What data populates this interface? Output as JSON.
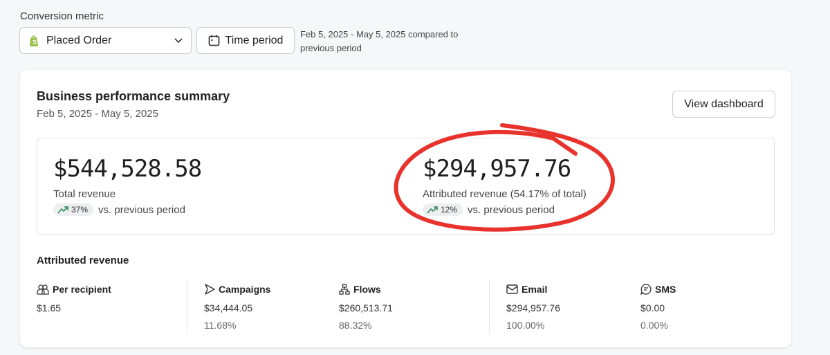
{
  "filters": {
    "conversion_label": "Conversion metric",
    "metric_value": "Placed Order",
    "time_period_label": "Time period",
    "range_text": "Feb 5, 2025 - May 5, 2025 compared to previous period"
  },
  "card": {
    "title": "Business performance summary",
    "date_range": "Feb 5, 2025 - May 5, 2025",
    "view_button": "View dashboard"
  },
  "metrics": [
    {
      "value": "$544,528.58",
      "label": "Total revenue",
      "change": "37%",
      "change_text": "vs. previous period",
      "trend": "up"
    },
    {
      "value": "$294,957.76",
      "label": "Attributed revenue (54.17% of total)",
      "change": "12%",
      "change_text": "vs. previous period",
      "trend": "up"
    }
  ],
  "attributed": {
    "title": "Attributed revenue",
    "columns": [
      {
        "icon": "users-icon",
        "label": "Per recipient",
        "value": "$1.65",
        "percent": ""
      },
      {
        "icon": "send-icon",
        "label": "Campaigns",
        "value": "$34,444.05",
        "percent": "11.68%"
      },
      {
        "icon": "flows-icon",
        "label": "Flows",
        "value": "$260,513.71",
        "percent": "88.32%"
      },
      {
        "icon": "mail-icon",
        "label": "Email",
        "value": "$294,957.76",
        "percent": "100.00%"
      },
      {
        "icon": "sms-icon",
        "label": "SMS",
        "value": "$0.00",
        "percent": "0.00%"
      }
    ]
  },
  "colors": {
    "trend_up": "#2e8b57",
    "annotation": "#e8322c",
    "shopify": "#95bf47"
  }
}
